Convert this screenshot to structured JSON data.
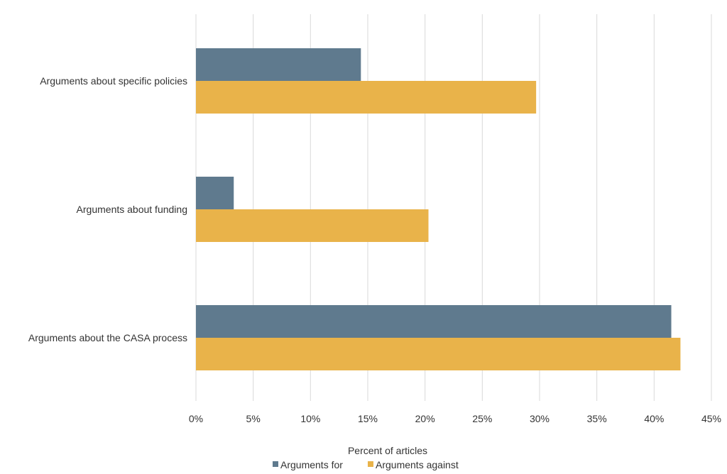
{
  "chart_data": {
    "type": "bar",
    "orientation": "horizontal",
    "categories": [
      "Arguments about specific policies",
      "Arguments about funding",
      "Arguments about the CASA process"
    ],
    "series": [
      {
        "name": "Arguments for",
        "values": [
          14.4,
          3.3,
          41.5
        ],
        "color": "#5f7a8e"
      },
      {
        "name": "Arguments against",
        "values": [
          29.7,
          20.3,
          42.3
        ],
        "color": "#e9b34a"
      }
    ],
    "xlim": [
      0,
      45
    ],
    "ticks": [
      0,
      5,
      10,
      15,
      20,
      25,
      30,
      35,
      40,
      45
    ],
    "tick_labels": [
      "0%",
      "5%",
      "10%",
      "15%",
      "20%",
      "25%",
      "30%",
      "35%",
      "40%",
      "45%"
    ],
    "xlabel": "Percent of articles",
    "legend": [
      "Arguments for",
      "Arguments against"
    ],
    "legend_placement": "bottom-center",
    "gridlines": true
  }
}
